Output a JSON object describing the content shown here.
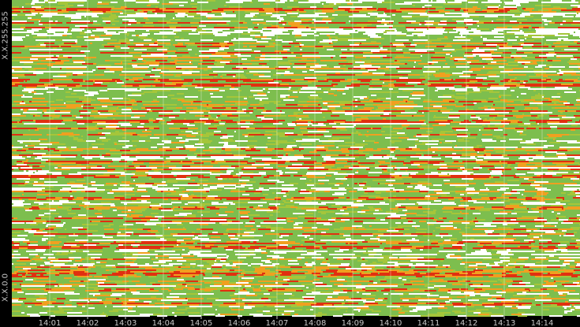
{
  "chart_data": {
    "type": "heatmap",
    "title": "",
    "xlabel": "",
    "ylabel": "",
    "y_axis": {
      "top_label": "X.X.255.255",
      "bottom_label": "X.X.0.0"
    },
    "x_ticks": [
      "14:01",
      "14:02",
      "14:03",
      "14:04",
      "14:05",
      "14:06",
      "14:07",
      "14:08",
      "14:09",
      "14:10",
      "14:11",
      "14:12",
      "14:13",
      "14:14"
    ],
    "x_range": [
      "14:00",
      "14:15"
    ],
    "grid": true,
    "legend": "none",
    "color_scale": {
      "none": "#ffffff",
      "low": "#7dbe4e",
      "mid_low": "#a5c63a",
      "mid": "#f0a020",
      "high": "#e03010"
    }
  }
}
